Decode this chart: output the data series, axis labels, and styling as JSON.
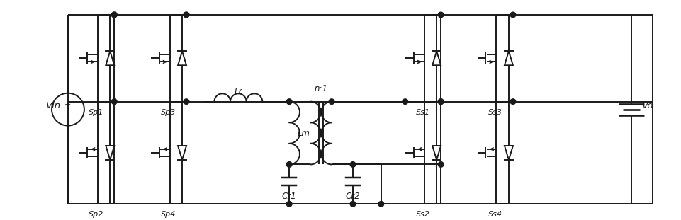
{
  "fig_width": 9.62,
  "fig_height": 3.11,
  "dpi": 100,
  "lc": "#1a1a1a",
  "lw": 1.4,
  "labels": {
    "Vin": "Vin",
    "Vo": "Vo",
    "Sp1": "Sp1",
    "Sp2": "Sp2",
    "Sp3": "Sp3",
    "Sp4": "Sp4",
    "Ss1": "Ss1",
    "Ss2": "Ss2",
    "Ss3": "Ss3",
    "Ss4": "Ss4",
    "Lr": "Lr",
    "Lm": "Lm",
    "Cr1": "Cr1",
    "Cr2": "Cr2",
    "n1": "n:1"
  }
}
